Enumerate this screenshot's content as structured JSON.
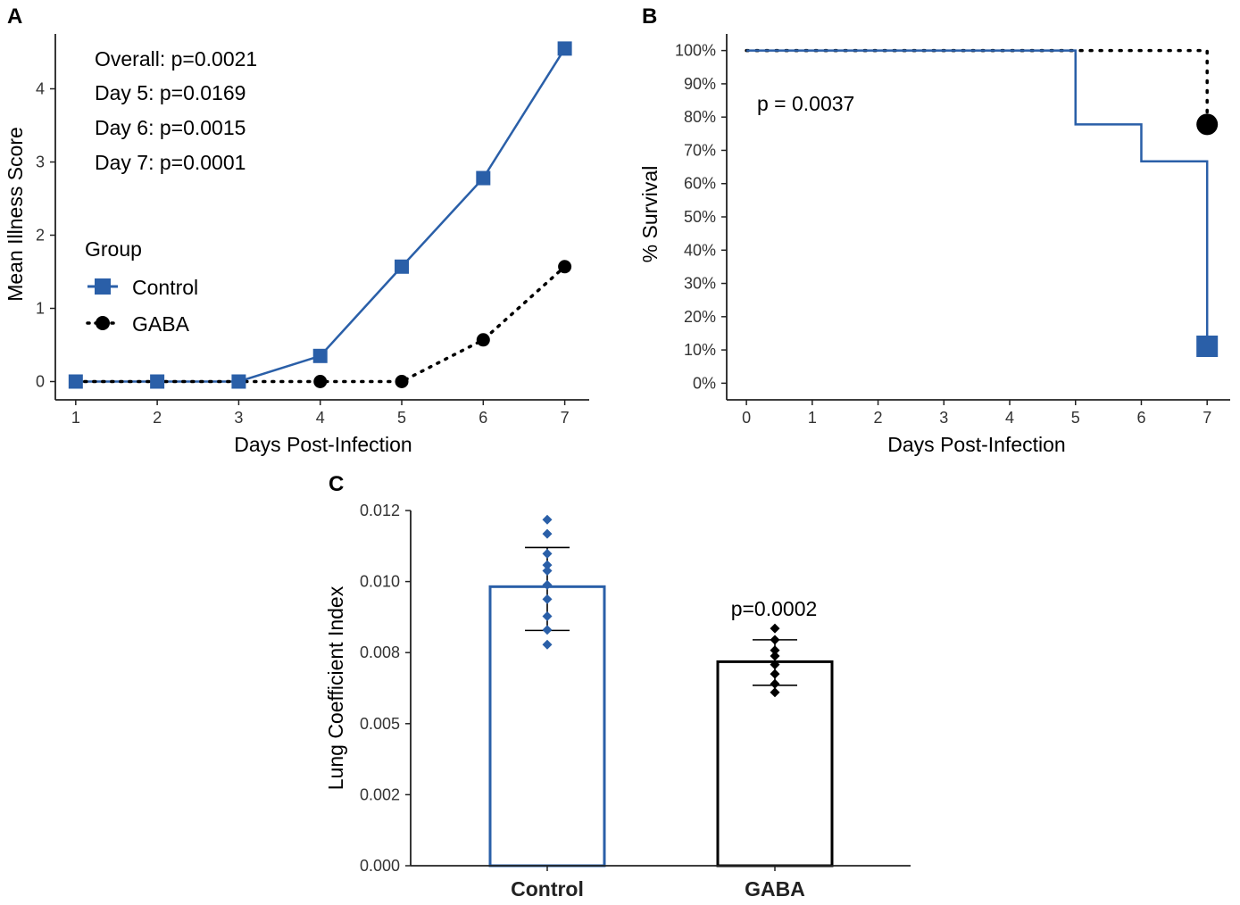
{
  "colors": {
    "control": "#2a5fa8",
    "gaba": "#000000",
    "axis": "#222222",
    "tick_text": "#333333"
  },
  "chart_data": [
    {
      "panel": "A",
      "type": "line",
      "xlabel": "Days Post-Infection",
      "ylabel": "Mean Illness Score",
      "xlim": [
        0.75,
        7.3
      ],
      "ylim": [
        -0.25,
        4.75
      ],
      "xticks": [
        1,
        2,
        3,
        4,
        5,
        6,
        7
      ],
      "yticks": [
        0,
        1,
        2,
        3,
        4
      ],
      "annotations": [
        "Overall: p=0.0021",
        "Day 5: p=0.0169",
        "Day 6: p=0.0015",
        "Day 7: p=0.0001"
      ],
      "legend": {
        "title": "Group",
        "placement": "left"
      },
      "series": [
        {
          "name": "Control",
          "key": "control",
          "marker": "square",
          "line": "solid",
          "x": [
            1,
            2,
            3,
            4,
            5,
            6,
            7
          ],
          "y": [
            0,
            0,
            0,
            0.35,
            1.57,
            2.78,
            4.55
          ]
        },
        {
          "name": "GABA",
          "key": "gaba",
          "marker": "circle",
          "line": "dotted",
          "x": [
            1,
            2,
            3,
            4,
            5,
            6,
            7
          ],
          "y": [
            0,
            0,
            0,
            0,
            0,
            0.57,
            1.57
          ]
        }
      ]
    },
    {
      "panel": "B",
      "type": "line",
      "subtype": "step",
      "xlabel": "Days Post-Infection",
      "ylabel": "% Survival",
      "xlim": [
        -0.3,
        7.35
      ],
      "ylim": [
        -5,
        105
      ],
      "xticks": [
        0,
        1,
        2,
        3,
        4,
        5,
        6,
        7
      ],
      "yticks": [
        0,
        10,
        20,
        30,
        40,
        50,
        60,
        70,
        80,
        90,
        100
      ],
      "ytick_labels": [
        "0%",
        "10%",
        "20%",
        "30%",
        "40%",
        "50%",
        "60%",
        "70%",
        "80%",
        "90%",
        "100%"
      ],
      "annotation": "p = 0.0037",
      "series": [
        {
          "name": "Control",
          "key": "control",
          "line": "solid",
          "end_marker": "square",
          "x": [
            0,
            5,
            6,
            7
          ],
          "y": [
            100,
            77.8,
            66.7,
            11.1
          ]
        },
        {
          "name": "GABA",
          "key": "gaba",
          "line": "dotted",
          "end_marker": "circle",
          "x": [
            0,
            7
          ],
          "y": [
            100,
            77.8
          ]
        }
      ]
    },
    {
      "panel": "C",
      "type": "bar",
      "categories": [
        "Control",
        "GABA"
      ],
      "ylabel": "Lung Coefficient Index",
      "ylim": [
        0,
        0.0125
      ],
      "yticks": [
        0,
        0.0025,
        0.005,
        0.0075,
        0.01,
        0.0125
      ],
      "ytick_labels": [
        "0.000",
        "0.002",
        "0.005",
        "0.008",
        "0.010",
        "0.012"
      ],
      "annotation": "p=0.0002",
      "bars": [
        {
          "name": "Control",
          "key": "control",
          "mean": 0.00982,
          "sd_low": 0.00828,
          "sd_high": 0.0112,
          "points": [
            0.01218,
            0.01168,
            0.01098,
            0.01058,
            0.01038,
            0.00988,
            0.00938,
            0.00878,
            0.0083,
            0.00778
          ]
        },
        {
          "name": "GABA",
          "key": "gaba",
          "mean": 0.00718,
          "sd_low": 0.00635,
          "sd_high": 0.00795,
          "points": [
            0.00835,
            0.00795,
            0.00758,
            0.00738,
            0.00708,
            0.00675,
            0.0064,
            0.0061
          ]
        }
      ]
    }
  ],
  "panel_labels": [
    "A",
    "B",
    "C"
  ]
}
